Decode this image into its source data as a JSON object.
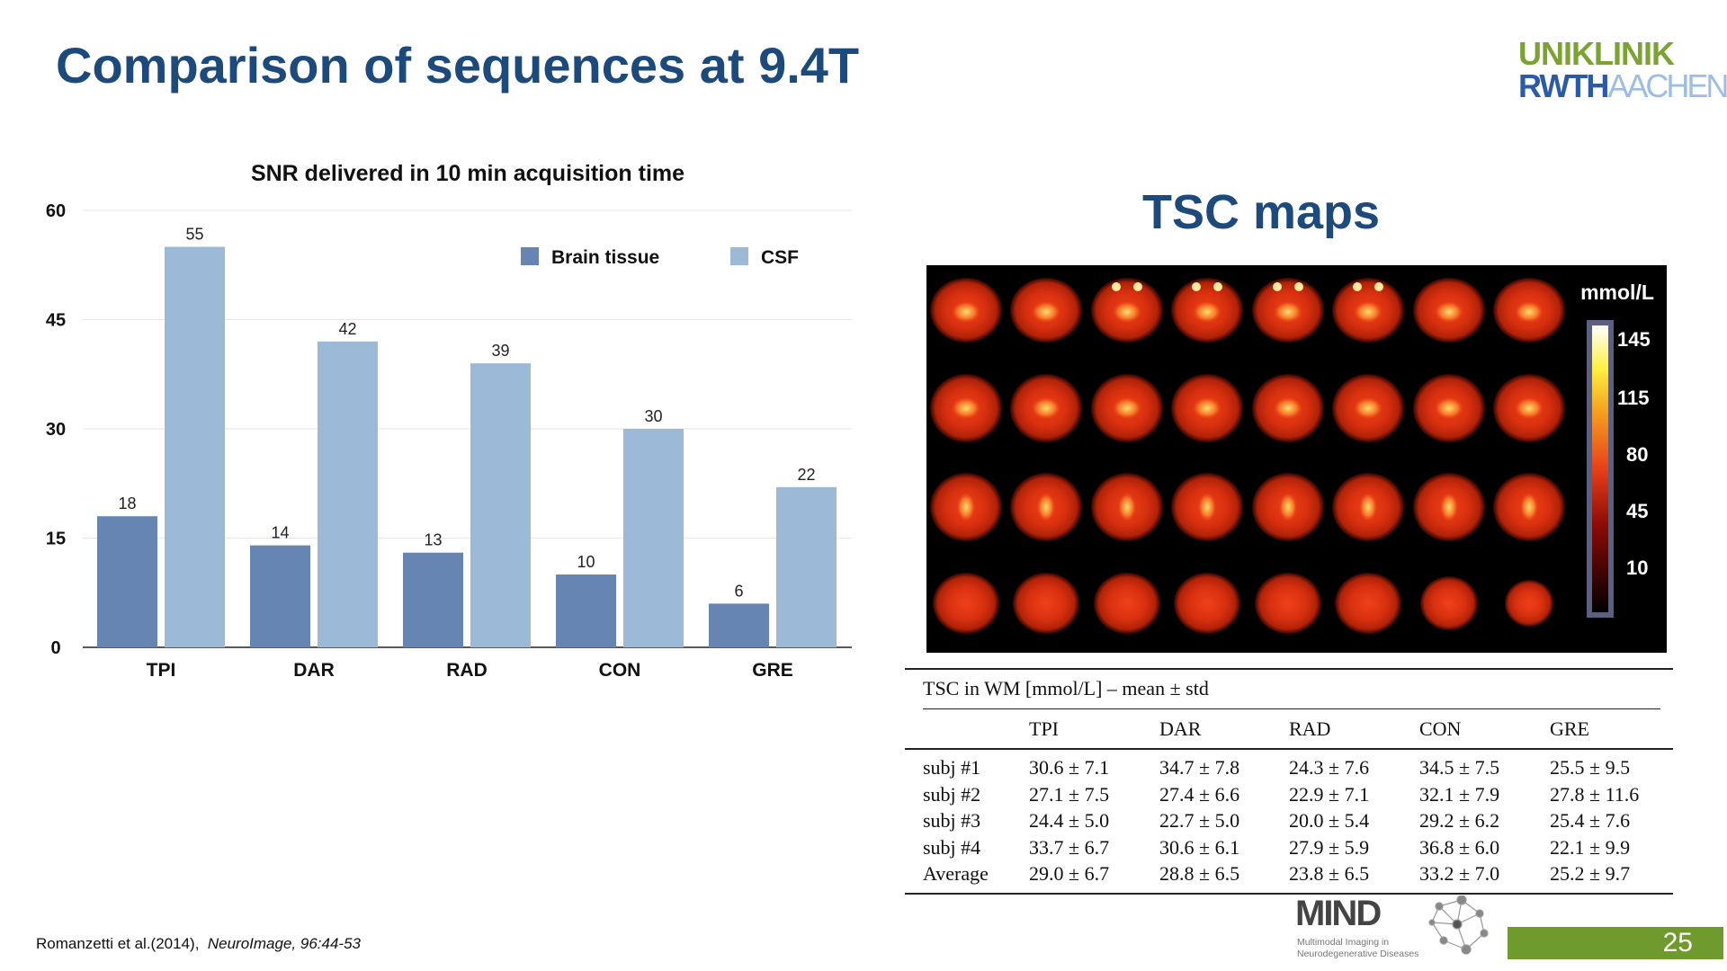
{
  "slide": {
    "title": "Comparison of sequences at 9.4T",
    "logo": {
      "line1": "UNIKLINIK",
      "line2a": "RWTH",
      "line2b": "AACHEN"
    },
    "citation_authors": "Romanzetti et al.(2014),",
    "citation_journal": "NeuroImage, 96:44-53",
    "page_number": "25",
    "mind_logo": {
      "name": "MIND",
      "line1": "Multimodal Imaging in",
      "line2": "Neurodegenerative Diseases"
    },
    "colors": {
      "title": "#1d4a7d",
      "brain_tissue": "#6785b3",
      "csf": "#9db9d8",
      "green": "#6f9a2e"
    }
  },
  "chart_data": {
    "type": "bar",
    "title": "SNR delivered in 10 min acquisition time",
    "categories": [
      "TPI",
      "DAR",
      "RAD",
      "CON",
      "GRE"
    ],
    "series": [
      {
        "name": "Brain tissue",
        "values": [
          18,
          14,
          13,
          10,
          6
        ]
      },
      {
        "name": "CSF",
        "values": [
          55,
          42,
          39,
          30,
          22
        ]
      }
    ],
    "yticks": [
      0,
      15,
      30,
      45,
      60
    ],
    "ylim": [
      0,
      60
    ],
    "grid": true,
    "legend": "top-right"
  },
  "tsc": {
    "title": "TSC maps",
    "colorbar": {
      "unit": "mmol/L",
      "ticks": [
        "145",
        "115",
        "80",
        "45",
        "10"
      ]
    },
    "table": {
      "caption": "TSC in WM [mmol/L] – mean ± std",
      "headers": [
        "",
        "TPI",
        "DAR",
        "RAD",
        "CON",
        "GRE"
      ],
      "rows": [
        [
          "subj #1",
          "30.6 ± 7.1",
          "34.7 ± 7.8",
          "24.3 ± 7.6",
          "34.5 ± 7.5",
          "25.5 ± 9.5"
        ],
        [
          "subj #2",
          "27.1 ± 7.5",
          "27.4 ± 6.6",
          "22.9 ± 7.1",
          "32.1 ± 7.9",
          "27.8 ± 11.6"
        ],
        [
          "subj #3",
          "24.4 ± 5.0",
          "22.7 ± 5.0",
          "20.0 ± 5.4",
          "29.2 ± 6.2",
          "25.4 ± 7.6"
        ],
        [
          "subj #4",
          "33.7 ± 6.7",
          "30.6 ± 6.1",
          "27.9 ± 5.9",
          "36.8 ± 6.0",
          "22.1 ± 9.9"
        ],
        [
          "Average",
          "29.0 ± 6.7",
          "28.8 ± 6.5",
          "23.8 ± 6.5",
          "33.2 ± 7.0",
          "25.2 ± 9.7"
        ]
      ]
    }
  }
}
